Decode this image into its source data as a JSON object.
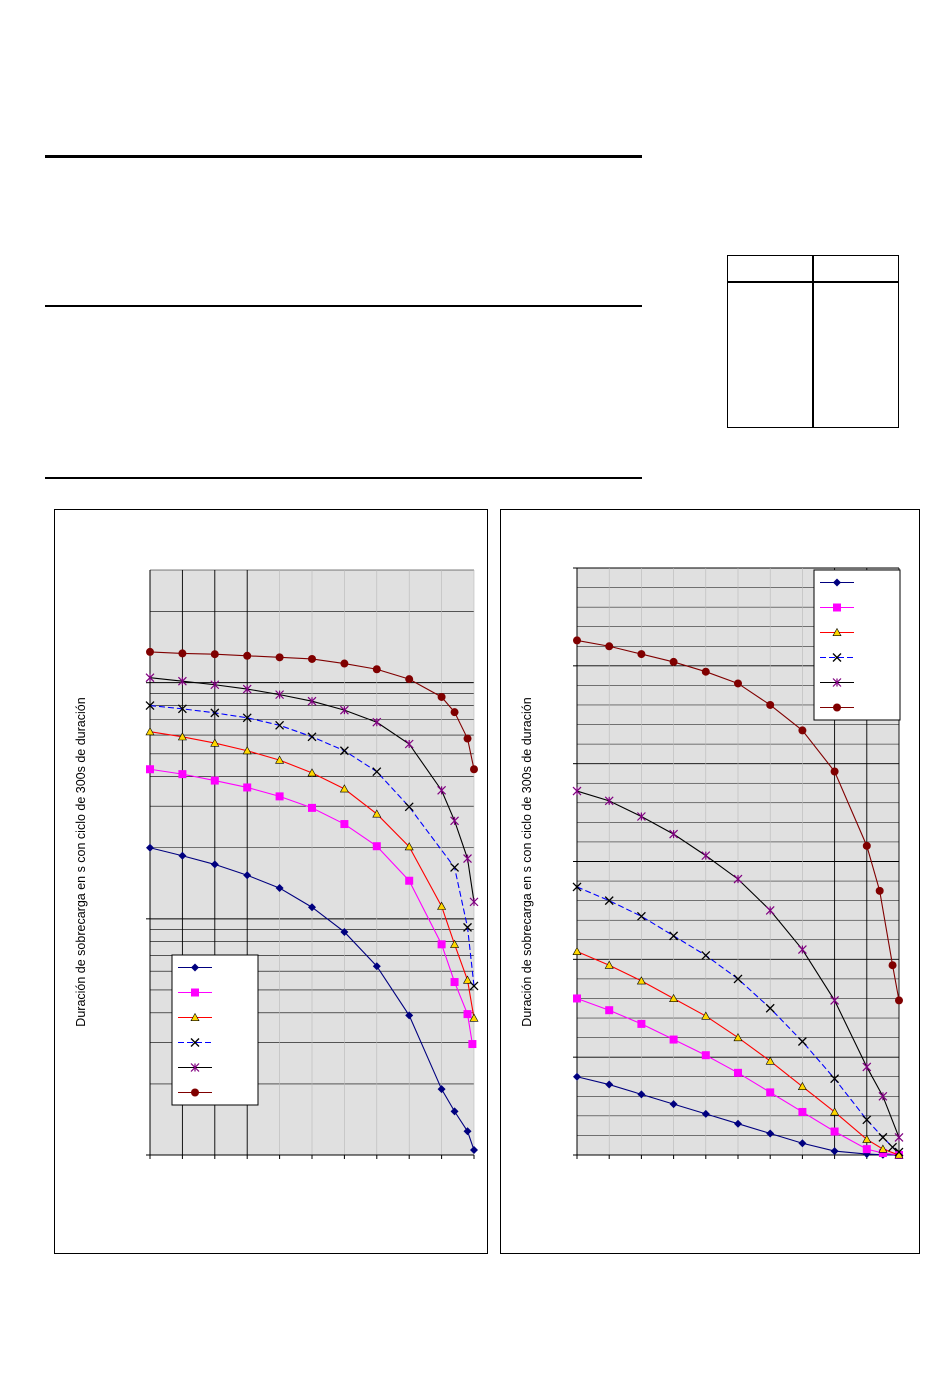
{
  "page": {
    "table": {
      "headers": [
        "",
        ""
      ],
      "rows": [
        [
          "",
          ""
        ]
      ]
    }
  },
  "chart_data": [
    {
      "type": "line",
      "title": "",
      "xlabel": "",
      "ylabel": "Duración de sobrecarga en s con ciclo de 300s de duración",
      "yscale": "log",
      "ylim": [
        1,
        300
      ],
      "xlim": [
        0,
        1
      ],
      "grid": true,
      "legend": "bottom-left",
      "series": [
        {
          "name": "",
          "color": "#00007f",
          "marker": "diamond",
          "x": [
            0,
            0.1,
            0.2,
            0.3,
            0.4,
            0.5,
            0.6,
            0.7,
            0.8,
            0.9,
            0.94,
            0.98,
            1.0
          ],
          "y": [
            20,
            18.5,
            17,
            15.3,
            13.5,
            11.2,
            8.8,
            6.3,
            3.9,
            1.9,
            1.53,
            1.26,
            1.05
          ]
        },
        {
          "name": "",
          "color": "#ff00ff",
          "marker": "square",
          "x": [
            0,
            0.1,
            0.2,
            0.3,
            0.4,
            0.5,
            0.6,
            0.7,
            0.8,
            0.9,
            0.94,
            0.98,
            0.995
          ],
          "y": [
            43,
            41,
            38.5,
            36,
            33,
            29.5,
            25.2,
            20.3,
            14.5,
            7.8,
            5.4,
            3.95,
            2.95
          ]
        },
        {
          "name": "",
          "color": "#ffd700",
          "marker": "triangle",
          "lineColor": "#ff0000",
          "x": [
            0,
            0.1,
            0.2,
            0.3,
            0.4,
            0.5,
            0.6,
            0.7,
            0.8,
            0.9,
            0.94,
            0.98,
            1.0
          ],
          "y": [
            62,
            59,
            55.5,
            51.5,
            47,
            41.5,
            35.5,
            27.8,
            20.2,
            11.3,
            7.8,
            5.5,
            3.8
          ]
        },
        {
          "name": "",
          "color": "#000000",
          "marker": "x",
          "lineColor": "#0000ff",
          "dash": "6,3",
          "x": [
            0,
            0.1,
            0.2,
            0.3,
            0.4,
            0.5,
            0.6,
            0.7,
            0.8,
            0.94,
            0.98,
            1.0
          ],
          "y": [
            80,
            77.5,
            74.5,
            71,
            66,
            59,
            51.5,
            42,
            29.8,
            16.5,
            9.2,
            5.2
          ]
        },
        {
          "name": "",
          "color": "#800080",
          "marker": "asterisk",
          "lineColor": "#000000",
          "x": [
            0,
            0.1,
            0.2,
            0.3,
            0.4,
            0.5,
            0.6,
            0.7,
            0.8,
            0.9,
            0.94,
            0.98,
            1.0
          ],
          "y": [
            105,
            101.5,
            98,
            94,
            89,
            83.5,
            76.5,
            68,
            55,
            35,
            26,
            18,
            11.8
          ]
        },
        {
          "name": "",
          "color": "#800000",
          "marker": "circle",
          "x": [
            0,
            0.1,
            0.2,
            0.3,
            0.4,
            0.5,
            0.6,
            0.7,
            0.8,
            0.9,
            0.94,
            0.98,
            1.0
          ],
          "y": [
            135,
            133,
            132,
            130,
            128,
            126,
            120.5,
            114,
            103.5,
            87,
            75,
            58,
            43
          ]
        }
      ]
    },
    {
      "type": "line",
      "title": "",
      "xlabel": "",
      "ylabel": "Duración de sobrecarga en s con ciclo de 300s de duración",
      "yscale": "linear",
      "ylim": [
        0,
        300
      ],
      "xlim": [
        0,
        1
      ],
      "grid": true,
      "legend": "top-right",
      "series": [
        {
          "name": "",
          "color": "#00007f",
          "marker": "diamond",
          "x": [
            0,
            0.1,
            0.2,
            0.3,
            0.4,
            0.5,
            0.6,
            0.7,
            0.8,
            0.9,
            0.95,
            1.0
          ],
          "y": [
            40,
            36,
            31,
            26,
            21,
            16,
            11,
            6,
            2,
            0.5,
            0.1,
            0
          ]
        },
        {
          "name": "",
          "color": "#ff00ff",
          "marker": "square",
          "x": [
            0,
            0.1,
            0.2,
            0.3,
            0.4,
            0.5,
            0.6,
            0.7,
            0.8,
            0.9,
            0.95,
            1.0
          ],
          "y": [
            80,
            74,
            67,
            59,
            51,
            42,
            32,
            22,
            12,
            3,
            1,
            0
          ]
        },
        {
          "name": "",
          "color": "#ffd700",
          "marker": "triangle",
          "lineColor": "#ff0000",
          "x": [
            0,
            0.1,
            0.2,
            0.3,
            0.4,
            0.5,
            0.6,
            0.7,
            0.8,
            0.9,
            0.95,
            1.0
          ],
          "y": [
            104,
            97,
            89,
            80,
            71,
            60,
            48,
            35,
            22,
            8,
            3,
            0
          ]
        },
        {
          "name": "",
          "color": "#000000",
          "marker": "x",
          "lineColor": "#0000ff",
          "dash": "6,3",
          "x": [
            0,
            0.1,
            0.2,
            0.3,
            0.4,
            0.5,
            0.6,
            0.7,
            0.8,
            0.9,
            0.95,
            0.98,
            1.0
          ],
          "y": [
            137,
            130,
            122,
            112,
            102,
            90,
            75,
            58,
            39,
            18,
            9,
            4,
            1.5
          ]
        },
        {
          "name": "",
          "color": "#800080",
          "marker": "asterisk",
          "lineColor": "#000000",
          "x": [
            0,
            0.1,
            0.2,
            0.3,
            0.4,
            0.5,
            0.6,
            0.7,
            0.8,
            0.9,
            0.95,
            1.0
          ],
          "y": [
            186,
            181,
            173,
            164,
            153,
            141,
            125,
            105,
            79,
            45,
            30,
            9
          ]
        },
        {
          "name": "",
          "color": "#800000",
          "marker": "circle",
          "x": [
            0,
            0.1,
            0.2,
            0.3,
            0.4,
            0.5,
            0.6,
            0.7,
            0.8,
            0.9,
            0.94,
            0.98,
            1.0
          ],
          "y": [
            263,
            260,
            256,
            252,
            247,
            241,
            230,
            217,
            196,
            158,
            135,
            97,
            79
          ]
        }
      ]
    }
  ]
}
